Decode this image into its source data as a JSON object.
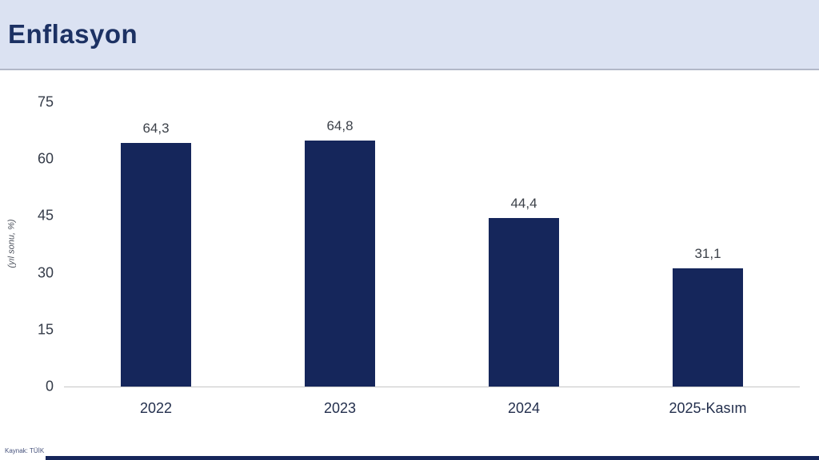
{
  "slide": {
    "title": "Enflasyon",
    "source": "Kaynak: TÜİK"
  },
  "colors": {
    "header_bg": "#dbe2f2",
    "title_text": "#1c3163",
    "bar": "#15265b",
    "baseline": "#c6c6c6",
    "accent_strip": "#16265a"
  },
  "chart_data": {
    "type": "bar",
    "title": "Enflasyon",
    "categories": [
      "2022",
      "2023",
      "2024",
      "2025-Kasım"
    ],
    "values": [
      64.3,
      64.8,
      44.4,
      31.1
    ],
    "value_labels": [
      "64,3",
      "64,8",
      "44,4",
      "31,1"
    ],
    "xlabel": "",
    "ylabel": "(yıl sonu, %)",
    "ylim": [
      0,
      75
    ],
    "yticks": [
      0,
      15,
      30,
      45,
      60,
      75
    ],
    "grid": false,
    "legend": false,
    "bar_color": "#15265b"
  }
}
